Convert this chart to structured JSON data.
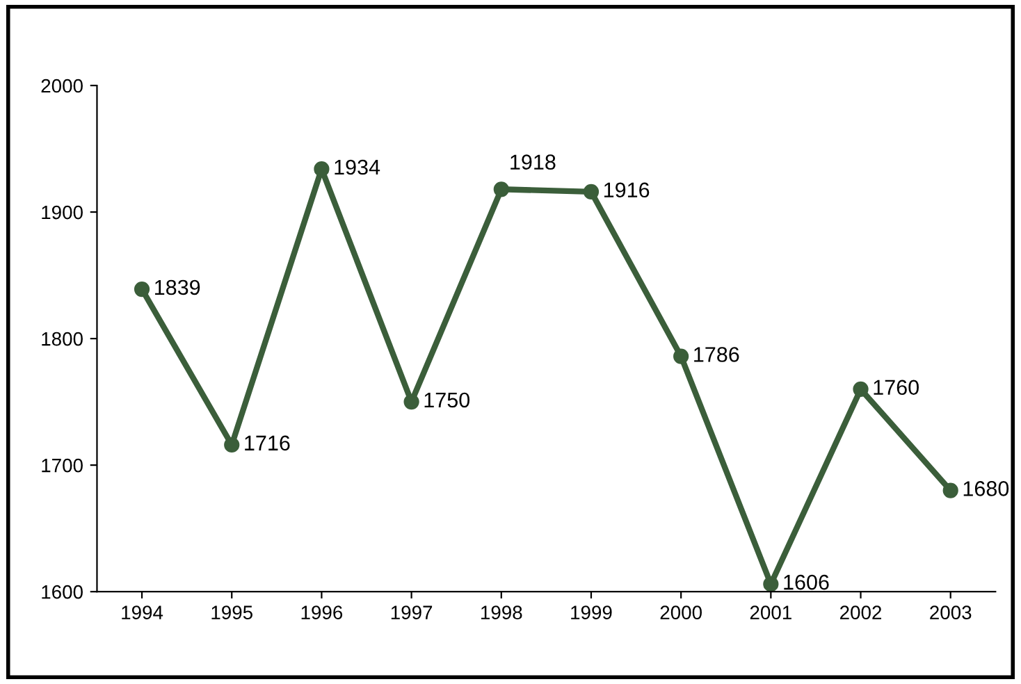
{
  "chart_data": {
    "type": "line",
    "categories": [
      "1994",
      "1995",
      "1996",
      "1997",
      "1998",
      "1999",
      "2000",
      "2001",
      "2002",
      "2003"
    ],
    "series": [
      {
        "color": "#3b5e3a",
        "values": [
          1839,
          1716,
          1934,
          1750,
          1918,
          1916,
          1786,
          1606,
          1760,
          1680
        ]
      }
    ],
    "ylim": [
      1600,
      2000
    ],
    "yticks": [
      1600,
      1700,
      1800,
      1900,
      2000
    ],
    "marker": "circle",
    "data_labels": true,
    "grid": false,
    "legend": false
  }
}
